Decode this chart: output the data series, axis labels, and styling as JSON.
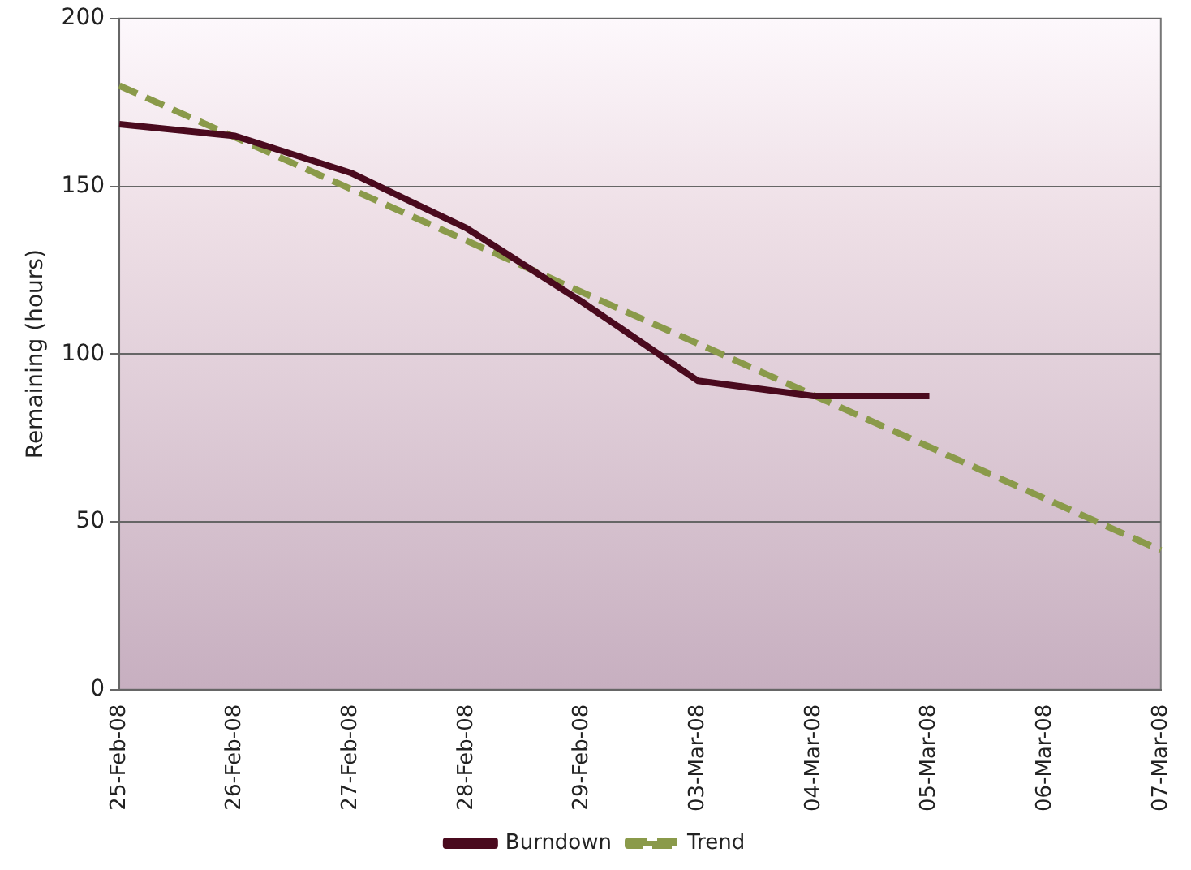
{
  "chart_data": {
    "type": "line",
    "ylabel": "Remaining (hours)",
    "categories": [
      "25-Feb-08",
      "26-Feb-08",
      "27-Feb-08",
      "28-Feb-08",
      "29-Feb-08",
      "03-Mar-08",
      "04-Mar-08",
      "05-Mar-08",
      "06-Mar-08",
      "07-Mar-08"
    ],
    "series": [
      {
        "name": "Burndown",
        "color": "#4a0a1e",
        "values": [
          168.5,
          165,
          154,
          137.5,
          115.5,
          92,
          87.5,
          87.5,
          null,
          null
        ],
        "line_style": "solid"
      },
      {
        "name": "Trend",
        "color": "#8a9a4a",
        "values": [
          180,
          164.6,
          149.2,
          133.8,
          118.4,
          103.1,
          87.7,
          72.3,
          56.9,
          41.5
        ],
        "line_style": "dashed"
      }
    ],
    "ylim": [
      0,
      200
    ],
    "yticks": [
      0,
      50,
      100,
      150,
      200
    ],
    "grid": "y",
    "legend": "bottom",
    "marker": "none"
  }
}
